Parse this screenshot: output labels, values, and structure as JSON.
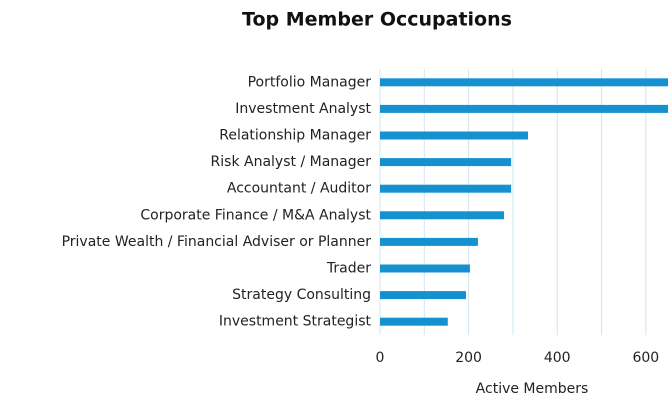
{
  "chart_data": {
    "type": "barh",
    "title": "Top Member Occupations",
    "categories": [
      "Portfolio Manager",
      "Investment Analyst",
      "Relationship Manager",
      "Risk Analyst / Manager",
      "Accountant / Auditor",
      "Corporate Finance / M&A Analyst",
      "Private Wealth / Financial Adviser or Planner",
      "Trader",
      "Strategy Consulting",
      "Investment Strategist"
    ],
    "values": [
      650,
      650,
      334,
      296,
      296,
      280,
      221,
      203,
      194,
      153
    ],
    "color": "#1591d0",
    "xlabel": "Active Members",
    "xlim": [
      0,
      650
    ],
    "xticks": [
      0,
      200,
      400,
      600
    ],
    "minor_xticks": [
      100,
      300,
      500
    ],
    "grid": true
  }
}
